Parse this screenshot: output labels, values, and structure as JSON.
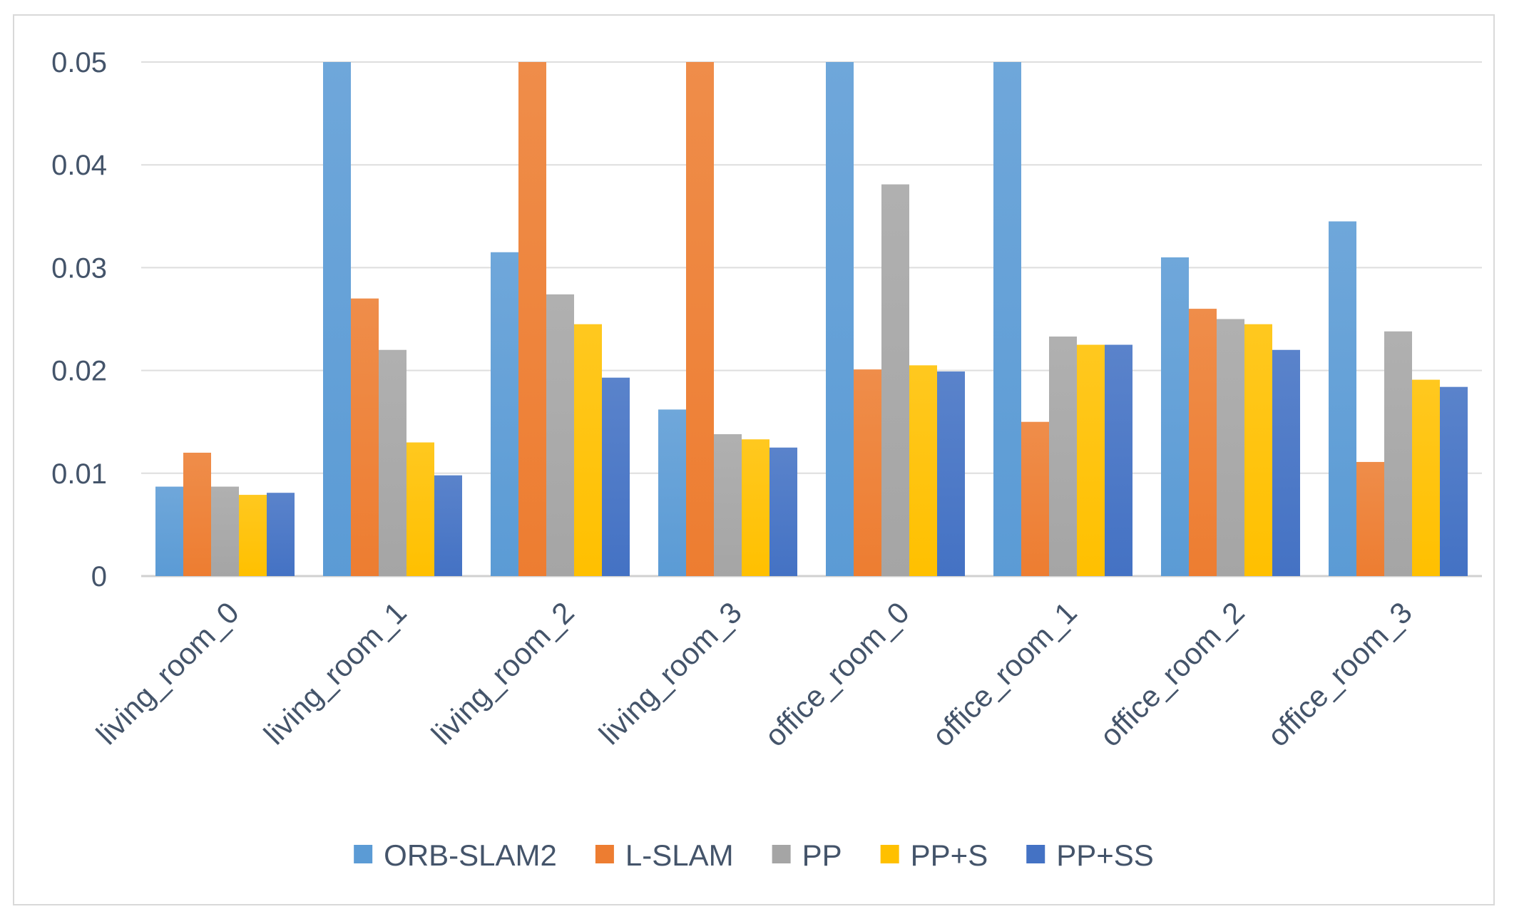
{
  "chart_data": {
    "type": "bar",
    "title": "",
    "xlabel": "",
    "ylabel": "",
    "categories": [
      "living_room_0",
      "living_room_1",
      "living_room_2",
      "living_room_3",
      "office_room_0",
      "office_room_1",
      "office_room_2",
      "office_room_3"
    ],
    "series": [
      {
        "name": "ORB-SLAM2",
        "color": "#5b9bd5",
        "values": [
          0.0087,
          0.05,
          0.0315,
          0.0162,
          0.05,
          0.05,
          0.031,
          0.0345
        ]
      },
      {
        "name": "L-SLAM",
        "color": "#ed7d31",
        "values": [
          0.012,
          0.027,
          0.05,
          0.05,
          0.0201,
          0.015,
          0.026,
          0.0111
        ]
      },
      {
        "name": "PP",
        "color": "#a5a5a5",
        "values": [
          0.0087,
          0.022,
          0.0274,
          0.0138,
          0.0381,
          0.0233,
          0.025,
          0.0238
        ]
      },
      {
        "name": "PP+S",
        "color": "#ffc000",
        "values": [
          0.0079,
          0.013,
          0.0245,
          0.0133,
          0.0205,
          0.0225,
          0.0245,
          0.0191
        ]
      },
      {
        "name": "PP+SS",
        "color": "#4472c4",
        "values": [
          0.0081,
          0.0098,
          0.0193,
          0.0125,
          0.0199,
          0.0225,
          0.022,
          0.0184
        ]
      }
    ],
    "ylim": [
      0,
      0.05
    ],
    "yticks": [
      "0",
      "0.01",
      "0.02",
      "0.03",
      "0.04",
      "0.05"
    ],
    "grid": true,
    "legend_position": "bottom-center"
  }
}
